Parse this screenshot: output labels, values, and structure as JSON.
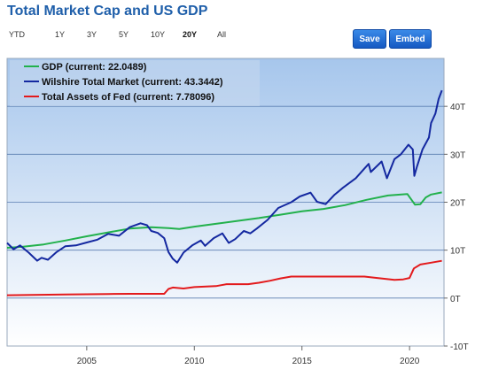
{
  "title": "Total Market Cap and US GDP",
  "ranges": [
    {
      "label": "YTD",
      "active": false
    },
    {
      "label": "1Y",
      "active": false
    },
    {
      "label": "3Y",
      "active": false
    },
    {
      "label": "5Y",
      "active": false
    },
    {
      "label": "10Y",
      "active": false
    },
    {
      "label": "20Y",
      "active": true
    },
    {
      "label": "All",
      "active": false
    }
  ],
  "buttons": {
    "save": "Save",
    "embed": "Embed"
  },
  "colors": {
    "gdp": "#22b14c",
    "wilshire": "#1428a0",
    "fed": "#e31a1c",
    "title": "#1f5faa"
  },
  "chart_data": {
    "type": "line",
    "title": "",
    "xlabel": "",
    "ylabel": "",
    "xlim": [
      2001.3,
      2021.6
    ],
    "ylim": [
      -10,
      50
    ],
    "x_ticks": [
      2005,
      2010,
      2015,
      2020
    ],
    "y_ticks": [
      {
        "value": 40,
        "label": "40T"
      },
      {
        "value": 30,
        "label": "30T"
      },
      {
        "value": 20,
        "label": "20T"
      },
      {
        "value": 10,
        "label": "10T"
      },
      {
        "value": 0,
        "label": "0T"
      },
      {
        "value": -10,
        "label": "-10T"
      }
    ],
    "grid": true,
    "legend": "top-left",
    "series": [
      {
        "name": "GDP (current: 22.0489)",
        "color": "#22b14c",
        "points": [
          [
            2001.3,
            10.5
          ],
          [
            2002,
            10.7
          ],
          [
            2003,
            11.2
          ],
          [
            2004,
            12.0
          ],
          [
            2005,
            12.9
          ],
          [
            2006,
            13.7
          ],
          [
            2007,
            14.5
          ],
          [
            2008,
            14.8
          ],
          [
            2008.8,
            14.6
          ],
          [
            2009.3,
            14.4
          ],
          [
            2010,
            14.9
          ],
          [
            2011,
            15.5
          ],
          [
            2012,
            16.1
          ],
          [
            2013,
            16.7
          ],
          [
            2014,
            17.4
          ],
          [
            2015,
            18.1
          ],
          [
            2016,
            18.6
          ],
          [
            2017,
            19.4
          ],
          [
            2018,
            20.5
          ],
          [
            2019,
            21.4
          ],
          [
            2019.9,
            21.7
          ],
          [
            2020.25,
            19.5
          ],
          [
            2020.5,
            19.6
          ],
          [
            2020.75,
            21.0
          ],
          [
            2021,
            21.6
          ],
          [
            2021.5,
            22.05
          ]
        ]
      },
      {
        "name": "Wilshire Total Market (current: 43.3442)",
        "color": "#1428a0",
        "points": [
          [
            2001.3,
            11.5
          ],
          [
            2001.6,
            10.2
          ],
          [
            2001.9,
            11.0
          ],
          [
            2002.3,
            9.5
          ],
          [
            2002.7,
            7.8
          ],
          [
            2002.9,
            8.4
          ],
          [
            2003.2,
            8.0
          ],
          [
            2003.6,
            9.6
          ],
          [
            2004,
            10.8
          ],
          [
            2004.5,
            11.0
          ],
          [
            2005,
            11.6
          ],
          [
            2005.5,
            12.2
          ],
          [
            2006,
            13.4
          ],
          [
            2006.5,
            13.0
          ],
          [
            2007,
            14.8
          ],
          [
            2007.5,
            15.6
          ],
          [
            2007.8,
            15.2
          ],
          [
            2008,
            14.0
          ],
          [
            2008.3,
            13.6
          ],
          [
            2008.6,
            12.5
          ],
          [
            2008.8,
            9.6
          ],
          [
            2009,
            8.2
          ],
          [
            2009.2,
            7.4
          ],
          [
            2009.5,
            9.5
          ],
          [
            2009.9,
            11.0
          ],
          [
            2010.3,
            12.0
          ],
          [
            2010.5,
            10.9
          ],
          [
            2010.9,
            12.5
          ],
          [
            2011.3,
            13.5
          ],
          [
            2011.6,
            11.5
          ],
          [
            2011.9,
            12.3
          ],
          [
            2012.3,
            14.0
          ],
          [
            2012.6,
            13.5
          ],
          [
            2012.9,
            14.5
          ],
          [
            2013.4,
            16.3
          ],
          [
            2013.9,
            18.8
          ],
          [
            2014.5,
            20.0
          ],
          [
            2014.9,
            21.2
          ],
          [
            2015.4,
            22.0
          ],
          [
            2015.7,
            20.1
          ],
          [
            2016.1,
            19.6
          ],
          [
            2016.5,
            21.5
          ],
          [
            2016.9,
            23.0
          ],
          [
            2017.5,
            25.0
          ],
          [
            2017.9,
            27.0
          ],
          [
            2018.1,
            28.0
          ],
          [
            2018.2,
            26.3
          ],
          [
            2018.7,
            28.5
          ],
          [
            2018.95,
            25.0
          ],
          [
            2019.3,
            29.0
          ],
          [
            2019.6,
            30.0
          ],
          [
            2019.95,
            32.0
          ],
          [
            2020.15,
            31.0
          ],
          [
            2020.22,
            25.5
          ],
          [
            2020.35,
            27.5
          ],
          [
            2020.6,
            31.0
          ],
          [
            2020.9,
            33.5
          ],
          [
            2021,
            36.5
          ],
          [
            2021.2,
            38.5
          ],
          [
            2021.35,
            41.5
          ],
          [
            2021.5,
            43.34
          ]
        ]
      },
      {
        "name": "Total Assets of Fed (current: 7.78096)",
        "color": "#e31a1c",
        "points": [
          [
            2001.3,
            0.6
          ],
          [
            2004,
            0.75
          ],
          [
            2006,
            0.85
          ],
          [
            2007,
            0.9
          ],
          [
            2008.6,
            0.9
          ],
          [
            2008.8,
            1.9
          ],
          [
            2009,
            2.2
          ],
          [
            2009.5,
            2.0
          ],
          [
            2010,
            2.3
          ],
          [
            2011,
            2.5
          ],
          [
            2011.5,
            2.9
          ],
          [
            2012.5,
            2.9
          ],
          [
            2013,
            3.2
          ],
          [
            2013.5,
            3.6
          ],
          [
            2014,
            4.1
          ],
          [
            2014.5,
            4.5
          ],
          [
            2015,
            4.5
          ],
          [
            2016,
            4.5
          ],
          [
            2017,
            4.5
          ],
          [
            2017.9,
            4.5
          ],
          [
            2018.5,
            4.2
          ],
          [
            2019.3,
            3.8
          ],
          [
            2019.7,
            3.9
          ],
          [
            2020,
            4.2
          ],
          [
            2020.2,
            6.2
          ],
          [
            2020.5,
            7.0
          ],
          [
            2021,
            7.4
          ],
          [
            2021.5,
            7.78
          ]
        ]
      }
    ]
  }
}
